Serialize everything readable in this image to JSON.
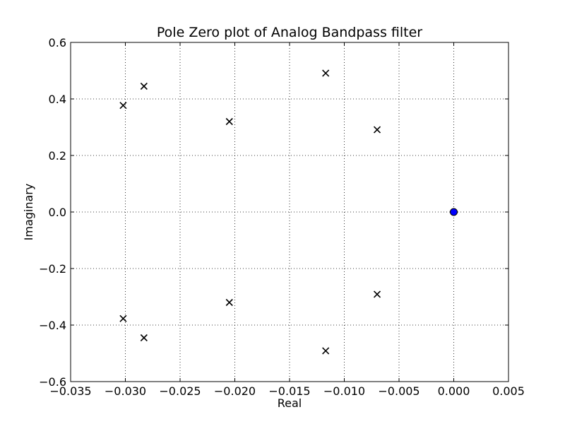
{
  "chart_data": {
    "type": "scatter",
    "title": "Pole Zero plot of Analog Bandpass filter",
    "xlabel": "Real",
    "ylabel": "Imaginary",
    "xlim": [
      -0.035,
      0.005
    ],
    "ylim": [
      -0.6,
      0.6
    ],
    "x_ticks": [
      -0.035,
      -0.03,
      -0.025,
      -0.02,
      -0.015,
      -0.01,
      -0.005,
      0.0,
      0.005
    ],
    "x_tick_labels": [
      "−0.035",
      "−0.030",
      "−0.025",
      "−0.020",
      "−0.015",
      "−0.010",
      "−0.005",
      "0.000",
      "0.005"
    ],
    "y_ticks": [
      -0.6,
      -0.4,
      -0.2,
      0.0,
      0.2,
      0.4,
      0.6
    ],
    "y_tick_labels": [
      "−0.6",
      "−0.4",
      "−0.2",
      "0.0",
      "0.2",
      "0.4",
      "0.6"
    ],
    "grid": true,
    "grid_style": "dotted",
    "series": [
      {
        "marker": "x",
        "color": "#000000",
        "points": [
          [
            -0.0302,
            0.377
          ],
          [
            -0.0283,
            0.445
          ],
          [
            -0.0205,
            0.32
          ],
          [
            -0.0117,
            0.491
          ],
          [
            -0.007,
            0.291
          ],
          [
            -0.0302,
            -0.377
          ],
          [
            -0.0283,
            -0.445
          ],
          [
            -0.0205,
            -0.32
          ],
          [
            -0.0117,
            -0.491
          ],
          [
            -0.007,
            -0.291
          ]
        ]
      },
      {
        "marker": "o",
        "color": "#0000ff",
        "points": [
          [
            0.0,
            0.0
          ]
        ]
      }
    ]
  }
}
